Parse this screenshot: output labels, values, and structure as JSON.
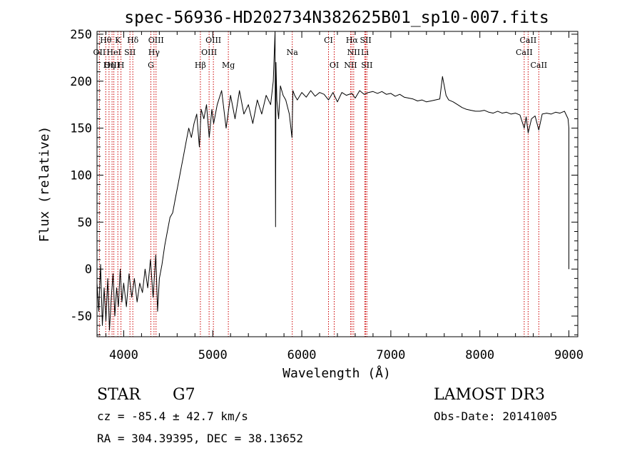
{
  "chart_data": {
    "type": "line",
    "title": "spec-56936-HD202734N382625B01_sp10-007.fits",
    "xlabel": "Wavelength (Å)",
    "ylabel": "Flux (relative)",
    "xlim": [
      3700,
      9100
    ],
    "ylim": [
      -72,
      253
    ],
    "xticks": [
      4000,
      5000,
      6000,
      7000,
      8000,
      9000
    ],
    "yticks": [
      -50,
      0,
      50,
      100,
      150,
      200,
      250
    ],
    "grid": false,
    "series": [
      {
        "color": "#000000",
        "x": [
          3700,
          3720,
          3740,
          3760,
          3780,
          3800,
          3820,
          3840,
          3860,
          3880,
          3900,
          3920,
          3940,
          3960,
          3980,
          4000,
          4030,
          4060,
          4090,
          4120,
          4150,
          4180,
          4210,
          4240,
          4270,
          4300,
          4330,
          4360,
          4380,
          4400,
          4430,
          4460,
          4490,
          4520,
          4550,
          4580,
          4610,
          4640,
          4670,
          4700,
          4730,
          4760,
          4790,
          4820,
          4850,
          4870,
          4900,
          4930,
          4960,
          4990,
          5010,
          5050,
          5100,
          5150,
          5200,
          5250,
          5300,
          5350,
          5400,
          5450,
          5500,
          5550,
          5600,
          5650,
          5680,
          5700,
          5705,
          5710,
          5720,
          5740,
          5760,
          5790,
          5820,
          5860,
          5890,
          5900,
          5920,
          5950,
          6000,
          6050,
          6100,
          6150,
          6200,
          6250,
          6300,
          6350,
          6400,
          6450,
          6500,
          6563,
          6600,
          6650,
          6700,
          6750,
          6800,
          6850,
          6900,
          6950,
          7000,
          7050,
          7100,
          7150,
          7200,
          7250,
          7300,
          7350,
          7400,
          7450,
          7500,
          7550,
          7580,
          7600,
          7620,
          7650,
          7700,
          7750,
          7800,
          7850,
          7900,
          7950,
          8000,
          8050,
          8100,
          8150,
          8200,
          8250,
          8300,
          8350,
          8400,
          8450,
          8498,
          8520,
          8542,
          8580,
          8620,
          8662,
          8700,
          8750,
          8800,
          8850,
          8900,
          8950,
          8990,
          9000,
          9000
        ],
        "y": [
          -15,
          -45,
          5,
          -60,
          -20,
          -55,
          -10,
          -65,
          -30,
          -5,
          -50,
          -20,
          -40,
          0,
          -35,
          -15,
          -40,
          -5,
          -30,
          -10,
          -35,
          -15,
          -25,
          0,
          -20,
          10,
          -30,
          15,
          -45,
          -10,
          5,
          25,
          40,
          55,
          60,
          75,
          90,
          105,
          120,
          135,
          150,
          140,
          155,
          165,
          130,
          170,
          160,
          175,
          140,
          170,
          155,
          175,
          190,
          150,
          185,
          160,
          190,
          165,
          175,
          155,
          180,
          165,
          185,
          175,
          200,
          253,
          45,
          220,
          180,
          160,
          195,
          185,
          180,
          165,
          140,
          190,
          185,
          180,
          188,
          183,
          190,
          184,
          188,
          186,
          180,
          188,
          178,
          188,
          185,
          187,
          182,
          190,
          186,
          188,
          189,
          187,
          189,
          186,
          187,
          184,
          186,
          183,
          182,
          181,
          179,
          180,
          178,
          179,
          180,
          181,
          205,
          195,
          185,
          180,
          178,
          175,
          172,
          170,
          169,
          168,
          168,
          169,
          167,
          166,
          168,
          166,
          167,
          165,
          166,
          164,
          150,
          162,
          145,
          160,
          163,
          148,
          165,
          166,
          165,
          167,
          166,
          168,
          160,
          150,
          0
        ]
      }
    ],
    "line_labels": [
      {
        "label": "Hθ",
        "x": 3798,
        "row": 1
      },
      {
        "label": "K",
        "x": 3934,
        "row": 1
      },
      {
        "label": "Hδ",
        "x": 4102,
        "row": 1
      },
      {
        "label": "OIII",
        "x": 4363,
        "row": 1
      },
      {
        "label": "OIII",
        "x": 5007,
        "row": 1
      },
      {
        "label": "CI",
        "x": 6300,
        "row": 1
      },
      {
        "label": "Hα",
        "x": 6563,
        "row": 1
      },
      {
        "label": "SII",
        "x": 6717,
        "row": 1
      },
      {
        "label": "CaII",
        "x": 8542,
        "row": 1
      },
      {
        "label": "OII",
        "x": 3727,
        "row": 2
      },
      {
        "label": "HeI",
        "x": 3889,
        "row": 2
      },
      {
        "label": "SII",
        "x": 4070,
        "row": 2
      },
      {
        "label": "Hγ",
        "x": 4340,
        "row": 2
      },
      {
        "label": "OIII",
        "x": 4959,
        "row": 2
      },
      {
        "label": "Na",
        "x": 5893,
        "row": 2
      },
      {
        "label": "NII",
        "x": 6583,
        "row": 2
      },
      {
        "label": "Li",
        "x": 6708,
        "row": 2
      },
      {
        "label": "CaII",
        "x": 8498,
        "row": 2
      },
      {
        "label": "OIII",
        "x": 3869,
        "row": 3
      },
      {
        "label": "Hη",
        "x": 3835,
        "row": 3
      },
      {
        "label": "H",
        "x": 3969,
        "row": 3
      },
      {
        "label": "G",
        "x": 4305,
        "row": 3
      },
      {
        "label": "Hβ",
        "x": 4861,
        "row": 3
      },
      {
        "label": "Mg",
        "x": 5175,
        "row": 3
      },
      {
        "label": "OI",
        "x": 6364,
        "row": 3
      },
      {
        "label": "NII",
        "x": 6548,
        "row": 3
      },
      {
        "label": "SII",
        "x": 6731,
        "row": 3
      },
      {
        "label": "CaII",
        "x": 8662,
        "row": 3
      }
    ],
    "line_marker_color": "#cc0000"
  },
  "info": {
    "class_label": "STAR",
    "subclass_label": "G7",
    "survey_label": "LAMOST DR3",
    "cz_text": "cz = -85.4 ± 42.7 km/s",
    "obs_date_text": "Obs-Date: 20141005",
    "radec_text": "RA = 304.39395, DEC =  38.13652"
  }
}
